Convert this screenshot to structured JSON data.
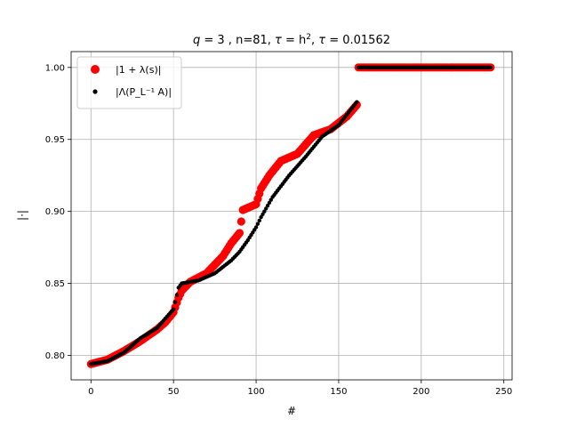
{
  "chart_data": {
    "type": "scatter",
    "title": "q = 3 , n=81, τ = h², τ = 0.01562",
    "title_parts": {
      "q": "q",
      "q_eq": " = 3 , n=81, ",
      "tau1": "τ",
      "tau1_eq": " = h",
      "sup": "2",
      "sep": ", ",
      "tau2": "τ",
      "tau2_eq": " = 0.01562"
    },
    "xlabel": "#",
    "ylabel": "|·|",
    "xlim": [
      -12,
      255
    ],
    "ylim": [
      0.783,
      1.011
    ],
    "xticks": [
      0,
      50,
      100,
      150,
      200,
      250
    ],
    "yticks": [
      0.8,
      0.85,
      0.9,
      0.95,
      1.0
    ],
    "xtick_labels": [
      "0",
      "50",
      "100",
      "150",
      "200",
      "250"
    ],
    "ytick_labels": [
      "0.80",
      "0.85",
      "0.90",
      "0.95",
      "1.00"
    ],
    "grid": true,
    "legend_position": "top-left",
    "legend": [
      {
        "label": "|1 + λ(s)|",
        "color": "#ff0000",
        "marker": "large-circle"
      },
      {
        "label": "|Λ(P_L⁻¹ A)|",
        "color": "#000000",
        "marker": "small-circle"
      }
    ],
    "series": [
      {
        "name": "|1 + λ(s)|",
        "color": "#ff0000",
        "marker": "large-circle",
        "x_start": 0,
        "x_end": 242,
        "y_anchors": [
          [
            0,
            0.794
          ],
          [
            10,
            0.797
          ],
          [
            20,
            0.803
          ],
          [
            30,
            0.81
          ],
          [
            40,
            0.818
          ],
          [
            45,
            0.823
          ],
          [
            50,
            0.83
          ],
          [
            53,
            0.84
          ],
          [
            55,
            0.845
          ],
          [
            60,
            0.851
          ],
          [
            70,
            0.857
          ],
          [
            80,
            0.869
          ],
          [
            85,
            0.878
          ],
          [
            90,
            0.885
          ],
          [
            92,
            0.901
          ],
          [
            100,
            0.905
          ],
          [
            103,
            0.916
          ],
          [
            108,
            0.925
          ],
          [
            115,
            0.935
          ],
          [
            125,
            0.94
          ],
          [
            135,
            0.953
          ],
          [
            145,
            0.957
          ],
          [
            155,
            0.966
          ],
          [
            161,
            0.974
          ],
          [
            162,
            1.0
          ],
          [
            242,
            1.0
          ]
        ]
      },
      {
        "name": "|Λ(P_L⁻¹ A)|",
        "color": "#000000",
        "marker": "small-circle",
        "x_start": 0,
        "x_end": 242,
        "y_anchors": [
          [
            0,
            0.794
          ],
          [
            10,
            0.796
          ],
          [
            20,
            0.802
          ],
          [
            30,
            0.812
          ],
          [
            40,
            0.819
          ],
          [
            50,
            0.832
          ],
          [
            53,
            0.847
          ],
          [
            55,
            0.85
          ],
          [
            65,
            0.852
          ],
          [
            75,
            0.857
          ],
          [
            85,
            0.866
          ],
          [
            90,
            0.872
          ],
          [
            95,
            0.88
          ],
          [
            100,
            0.889
          ],
          [
            103,
            0.896
          ],
          [
            110,
            0.91
          ],
          [
            120,
            0.925
          ],
          [
            130,
            0.938
          ],
          [
            140,
            0.952
          ],
          [
            150,
            0.96
          ],
          [
            161,
            0.976
          ],
          [
            162,
            1.0
          ],
          [
            242,
            1.0
          ]
        ]
      }
    ]
  }
}
